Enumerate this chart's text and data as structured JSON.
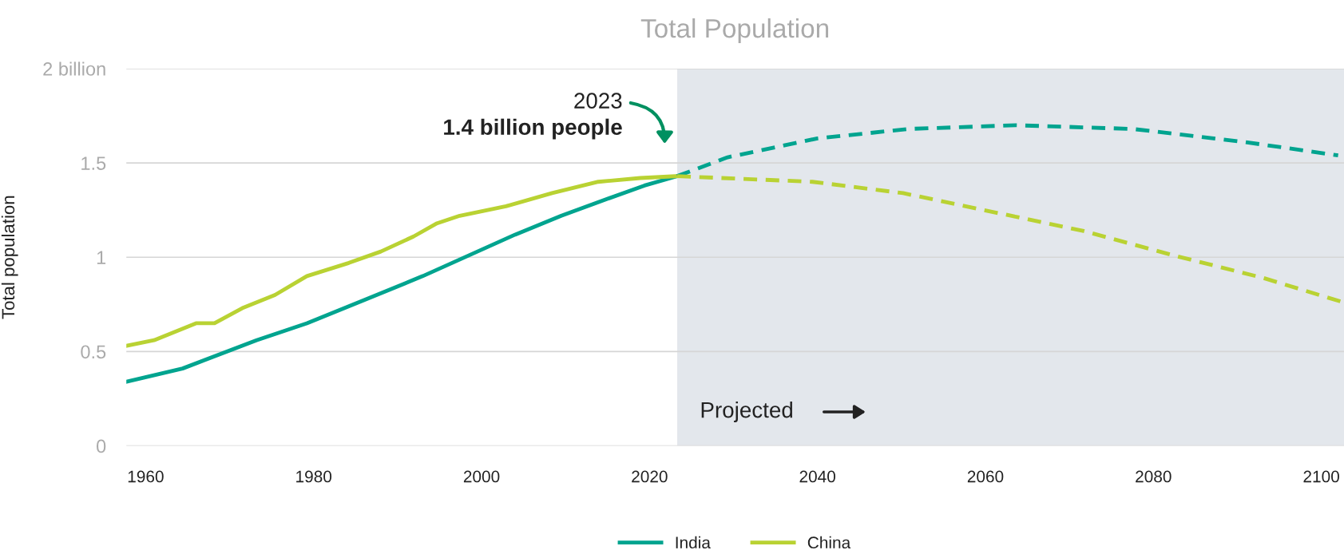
{
  "chart_data": {
    "type": "line",
    "title": "Total Population",
    "ylabel": "Total population",
    "series": [
      {
        "name": "India",
        "color": "#00a48f",
        "line_style": "solid",
        "x": [
          1957.7,
          1964.4,
          1973.2,
          1979.2,
          1986.4,
          1993.0,
          1998.5,
          2004.0,
          2009.5,
          2015.0,
          2019.4,
          2023.3
        ],
        "values": [
          0.34,
          0.41,
          0.56,
          0.65,
          0.78,
          0.9,
          1.01,
          1.12,
          1.22,
          1.31,
          1.38,
          1.43
        ]
      },
      {
        "name": "China",
        "color": "#b9d233",
        "line_style": "solid",
        "x": [
          1957.7,
          1961.0,
          1966.0,
          1968.2,
          1971.5,
          1975.4,
          1979.2,
          1984.2,
          1988.0,
          1991.9,
          1994.7,
          1997.4,
          2002.9,
          2008.4,
          2013.9,
          2018.9,
          2023.3
        ],
        "values": [
          0.53,
          0.56,
          0.65,
          0.65,
          0.73,
          0.8,
          0.9,
          0.97,
          1.03,
          1.11,
          1.18,
          1.22,
          1.27,
          1.34,
          1.4,
          1.42,
          1.43
        ]
      },
      {
        "color": "#00a48f",
        "line_style": "dashed",
        "x": [
          2023.3,
          2029.3,
          2040.0,
          2050.8,
          2063.6,
          2077.6,
          2091.0,
          2102.0
        ],
        "values": [
          1.43,
          1.53,
          1.63,
          1.68,
          1.7,
          1.68,
          1.61,
          1.54
        ]
      },
      {
        "color": "#b9d233",
        "line_style": "dashed",
        "x": [
          2023.3,
          2039.4,
          2050.2,
          2060.9,
          2071.6,
          2082.4,
          2093.1,
          2102.7
        ],
        "values": [
          1.43,
          1.4,
          1.34,
          1.24,
          1.14,
          1.01,
          0.89,
          0.76
        ]
      }
    ],
    "xlim": [
      1957.7,
      2102.7
    ],
    "ylim": [
      0,
      2
    ],
    "xticks": [
      1960,
      1980,
      2000,
      2020,
      2040,
      2060,
      2080,
      2100
    ],
    "yticks": [
      0,
      0.5,
      1,
      1.5,
      {
        "value": 2,
        "label": "2 billion"
      }
    ],
    "bands": [
      {
        "axis": "x",
        "from": 2023.3,
        "to": 2102.7,
        "color": "#e3e7ec"
      }
    ],
    "annotations": [
      "2023",
      "1.4 billion people",
      "Projected"
    ],
    "grid": "y",
    "legend": "bottom",
    "marker": "none"
  }
}
